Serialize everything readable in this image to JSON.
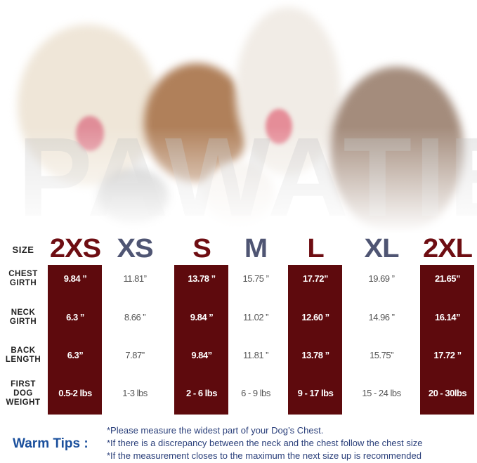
{
  "watermark": "PAWATIE",
  "colors": {
    "highlight": "#5e0a0d",
    "size_red": "#6e0d12",
    "size_grey": "#4f5573",
    "tips_blue": "#1a4f9c"
  },
  "table": {
    "size_label": "SIZE",
    "sizes": [
      "2XS",
      "XS",
      "S",
      "M",
      "L",
      "XL",
      "2XL"
    ],
    "highlighted": [
      true,
      false,
      true,
      false,
      true,
      false,
      true
    ],
    "rows": [
      {
        "label": "CHEST GIRTH",
        "values": [
          "9.84 ”",
          "11.81”",
          "13.78 ”",
          "15.75 ”",
          "17.72”",
          "19.69 ”",
          "21.65”"
        ]
      },
      {
        "label": "NECK GIRTH",
        "values": [
          "6.3 ”",
          "8.66 ”",
          "9.84 ”",
          "11.02 ”",
          "12.60 ”",
          "14.96 ”",
          "16.14”"
        ]
      },
      {
        "label": "BACK LENGTH",
        "values": [
          "6.3”",
          "7.87”",
          "9.84”",
          "11.81 ”",
          "13.78 ”",
          "15.75”",
          "17.72 ”"
        ]
      },
      {
        "label": "FIRST DOG WEIGHT",
        "values": [
          "0.5-2 lbs",
          "1-3 lbs",
          "2 - 6 lbs",
          "6 - 9 lbs",
          "9 - 17 lbs",
          "15 - 24 lbs",
          "20 - 30lbs"
        ]
      }
    ]
  },
  "tips": {
    "title": "Warm Tips :",
    "lines": [
      "*Please measure the widest part of your Dog’s Chest.",
      "*If there is a discrepancy between the neck and the chest  follow the chest size",
      "*If the measurement closes to the maximum the next size up is recommended"
    ]
  }
}
